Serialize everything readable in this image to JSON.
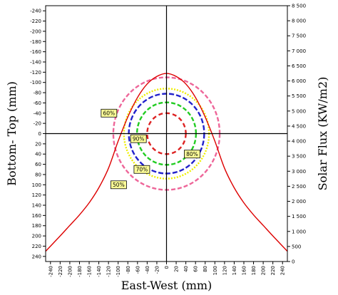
{
  "chart_data": {
    "type": "line",
    "title": "",
    "xlabel": "East-West (mm)",
    "ylabel": "Bottom- Top (mm)",
    "y2label": "Solar Flux (KW/m2)",
    "xlim": [
      -250,
      250
    ],
    "ylim": [
      -250,
      250
    ],
    "y_inverted": true,
    "y2lim": [
      0,
      8500
    ],
    "xticks": [
      -240,
      -220,
      -200,
      -180,
      -160,
      -140,
      -120,
      -100,
      -80,
      -60,
      -40,
      -20,
      0,
      20,
      40,
      60,
      80,
      100,
      120,
      140,
      160,
      180,
      200,
      220,
      240
    ],
    "yticks": [
      -240,
      -220,
      -200,
      -180,
      -160,
      -140,
      -120,
      -100,
      -80,
      -60,
      -40,
      -20,
      0,
      20,
      40,
      60,
      80,
      100,
      120,
      140,
      160,
      180,
      200,
      220,
      240
    ],
    "y2ticks": [
      0,
      500,
      1000,
      1500,
      2000,
      2500,
      3000,
      3500,
      4000,
      4500,
      5000,
      5500,
      6000,
      6500,
      7000,
      7500,
      8000,
      8500
    ],
    "y2tick_labels": [
      "0",
      "500",
      "1 000",
      "1 500",
      "2 000",
      "2 500",
      "3 000",
      "3 500",
      "4 000",
      "4 500",
      "5 000",
      "5 500",
      "6 000",
      "6 500",
      "7 000",
      "7 500",
      "8 000",
      "8 500"
    ],
    "grid": false,
    "crosshair": {
      "x": 0,
      "y": 0
    },
    "contours": [
      {
        "label": "90%",
        "radius": 40,
        "color": "#dd2222",
        "dash": "6 4"
      },
      {
        "label": "80%",
        "radius": 61,
        "color": "#22cc22",
        "dash": "6 3"
      },
      {
        "label": "70%",
        "radius": 78,
        "color": "#2222cc",
        "dash": "7 3"
      },
      {
        "label": "60%",
        "radius": 88,
        "color": "#eeee00",
        "dash": "2 2"
      },
      {
        "label": "50%",
        "radius": 110,
        "color": "#ee6699",
        "dash": "6 3"
      }
    ],
    "labels": [
      {
        "text": "60%",
        "x": -119,
        "y": -40
      },
      {
        "text": "90%",
        "x": -58,
        "y": 10
      },
      {
        "text": "80%",
        "x": 53,
        "y": 40
      },
      {
        "text": "70%",
        "x": -51,
        "y": 70
      },
      {
        "text": "50%",
        "x": -99,
        "y": 100
      }
    ],
    "series": [
      {
        "color": "#dd0000",
        "x": [
          -250,
          -220,
          -200,
          -180,
          -160,
          -140,
          -120,
          -100,
          -80,
          -60,
          -40,
          -20,
          0,
          20,
          40,
          60,
          80,
          100,
          120,
          140,
          160,
          180,
          200,
          220,
          250
        ],
        "y2": [
          340,
          850,
          1200,
          1550,
          1950,
          2450,
          3100,
          4000,
          4800,
          5450,
          5900,
          6150,
          6250,
          6150,
          5900,
          5450,
          4800,
          4000,
          3100,
          2450,
          1950,
          1550,
          1200,
          850,
          340
        ]
      }
    ]
  }
}
